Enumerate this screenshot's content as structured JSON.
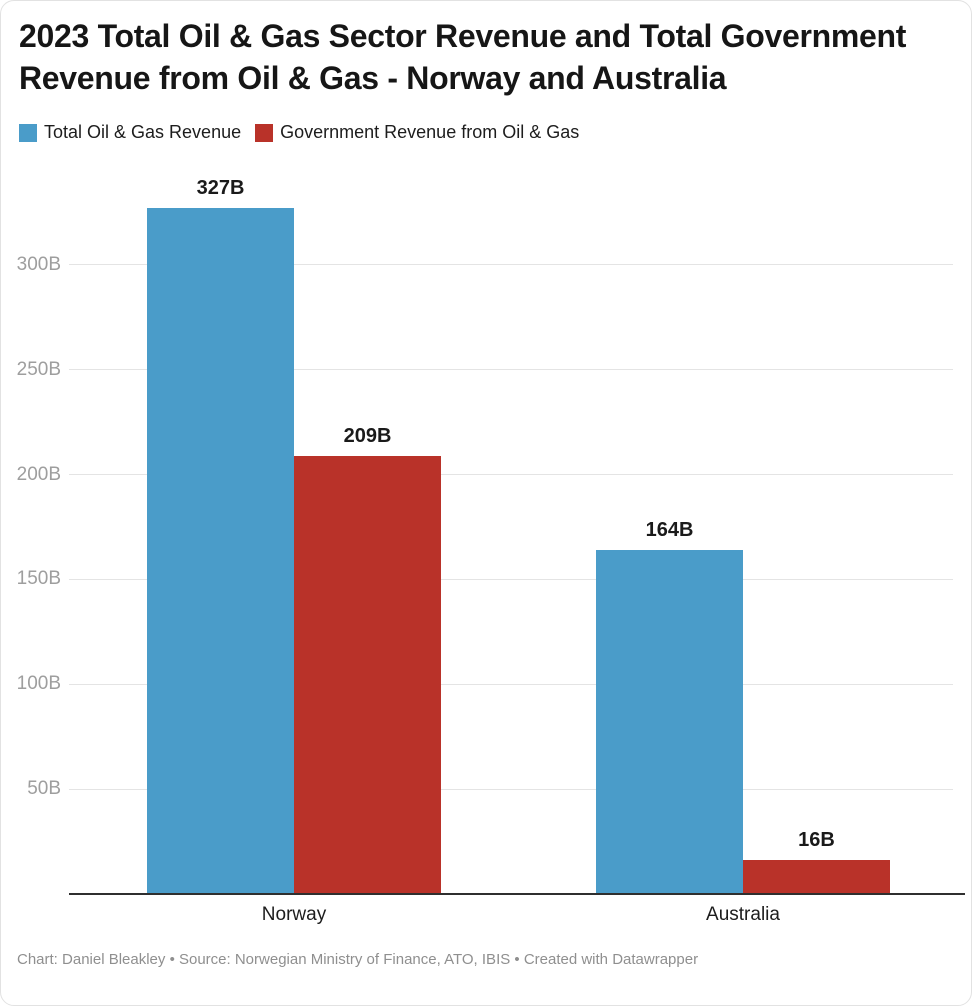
{
  "title": "2023 Total Oil & Gas Sector Revenue and Total Government Revenue from Oil & Gas - Norway and Australia",
  "footer": "Chart: Daniel Bleakley • Source: Norwegian Ministry of Finance, ATO, IBIS • Created with Datawrapper",
  "colors": {
    "series_blue": "#4a9cc9",
    "series_red": "#b93229",
    "title_text": "#161616",
    "tick_text": "#9e9e9e",
    "gridline": "#e4e4e4",
    "axis_line": "#2f2f2f",
    "footer_text": "#8f8f8f"
  },
  "chart_data": {
    "type": "bar",
    "categories": [
      "Norway",
      "Australia"
    ],
    "series": [
      {
        "name": "Total Oil & Gas Revenue",
        "color": "#4a9cc9",
        "values": [
          327,
          164
        ],
        "value_labels": [
          "327B",
          "164B"
        ]
      },
      {
        "name": "Government Revenue from Oil & Gas",
        "color": "#b93229",
        "values": [
          209,
          16
        ],
        "value_labels": [
          "209B",
          "16B"
        ]
      }
    ],
    "y_ticks": [
      {
        "value": 50,
        "label": "50B"
      },
      {
        "value": 100,
        "label": "100B"
      },
      {
        "value": 150,
        "label": "150B"
      },
      {
        "value": 200,
        "label": "200B"
      },
      {
        "value": 250,
        "label": "250B"
      },
      {
        "value": 300,
        "label": "300B"
      }
    ],
    "ylim": [
      0,
      340
    ],
    "grid": true,
    "legend_position": "top-left",
    "xlabel": "",
    "ylabel": ""
  }
}
